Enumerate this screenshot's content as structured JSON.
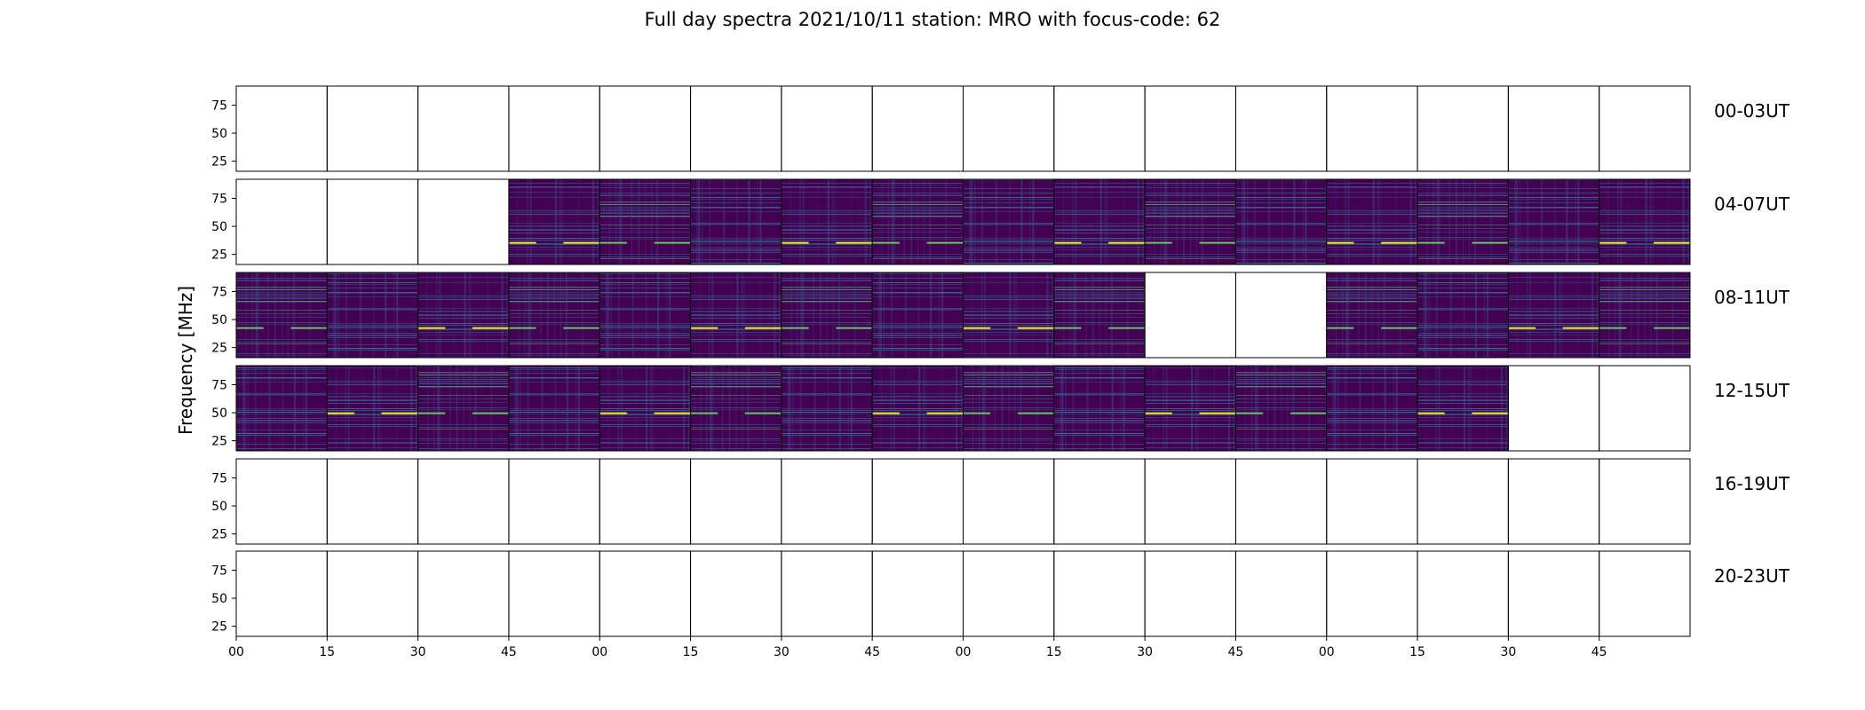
{
  "chart_data": {
    "type": "heatmap",
    "title": "Full day spectra 2021/10/11 station: MRO with focus-code: 62",
    "ylabel": "Frequency [MHz]",
    "xlabel": "",
    "ylim": [
      16,
      92
    ],
    "yticks": [
      25,
      50,
      75
    ],
    "xtick_labels": [
      "00",
      "15",
      "30",
      "45",
      "00",
      "15",
      "30",
      "45",
      "00",
      "15",
      "30",
      "45",
      "00",
      "15",
      "30",
      "45"
    ],
    "colormap": [
      "#440154",
      "#3b528b",
      "#21918c",
      "#5ec962",
      "#fde725"
    ],
    "rows": [
      {
        "label": "00-03UT",
        "panels": [
          0,
          0,
          0,
          0,
          0,
          0,
          0,
          0,
          0,
          0,
          0,
          0,
          0,
          0,
          0,
          0
        ]
      },
      {
        "label": "04-07UT",
        "panels": [
          0,
          0,
          0,
          1,
          1,
          1,
          1,
          1,
          1,
          1,
          1,
          1,
          1,
          1,
          1,
          1
        ]
      },
      {
        "label": "08-11UT",
        "panels": [
          1,
          1,
          1,
          1,
          1,
          1,
          1,
          1,
          1,
          1,
          0,
          0,
          1,
          1,
          1,
          1
        ]
      },
      {
        "label": "12-15UT",
        "panels": [
          1,
          1,
          1,
          1,
          1,
          1,
          1,
          1,
          1,
          1,
          1,
          1,
          1,
          1,
          0,
          0
        ]
      },
      {
        "label": "16-19UT",
        "panels": [
          0,
          0,
          0,
          0,
          0,
          0,
          0,
          0,
          0,
          0,
          0,
          0,
          0,
          0,
          0,
          0
        ]
      },
      {
        "label": "20-23UT",
        "panels": [
          0,
          0,
          0,
          0,
          0,
          0,
          0,
          0,
          0,
          0,
          0,
          0,
          0,
          0,
          0,
          0
        ]
      }
    ]
  }
}
